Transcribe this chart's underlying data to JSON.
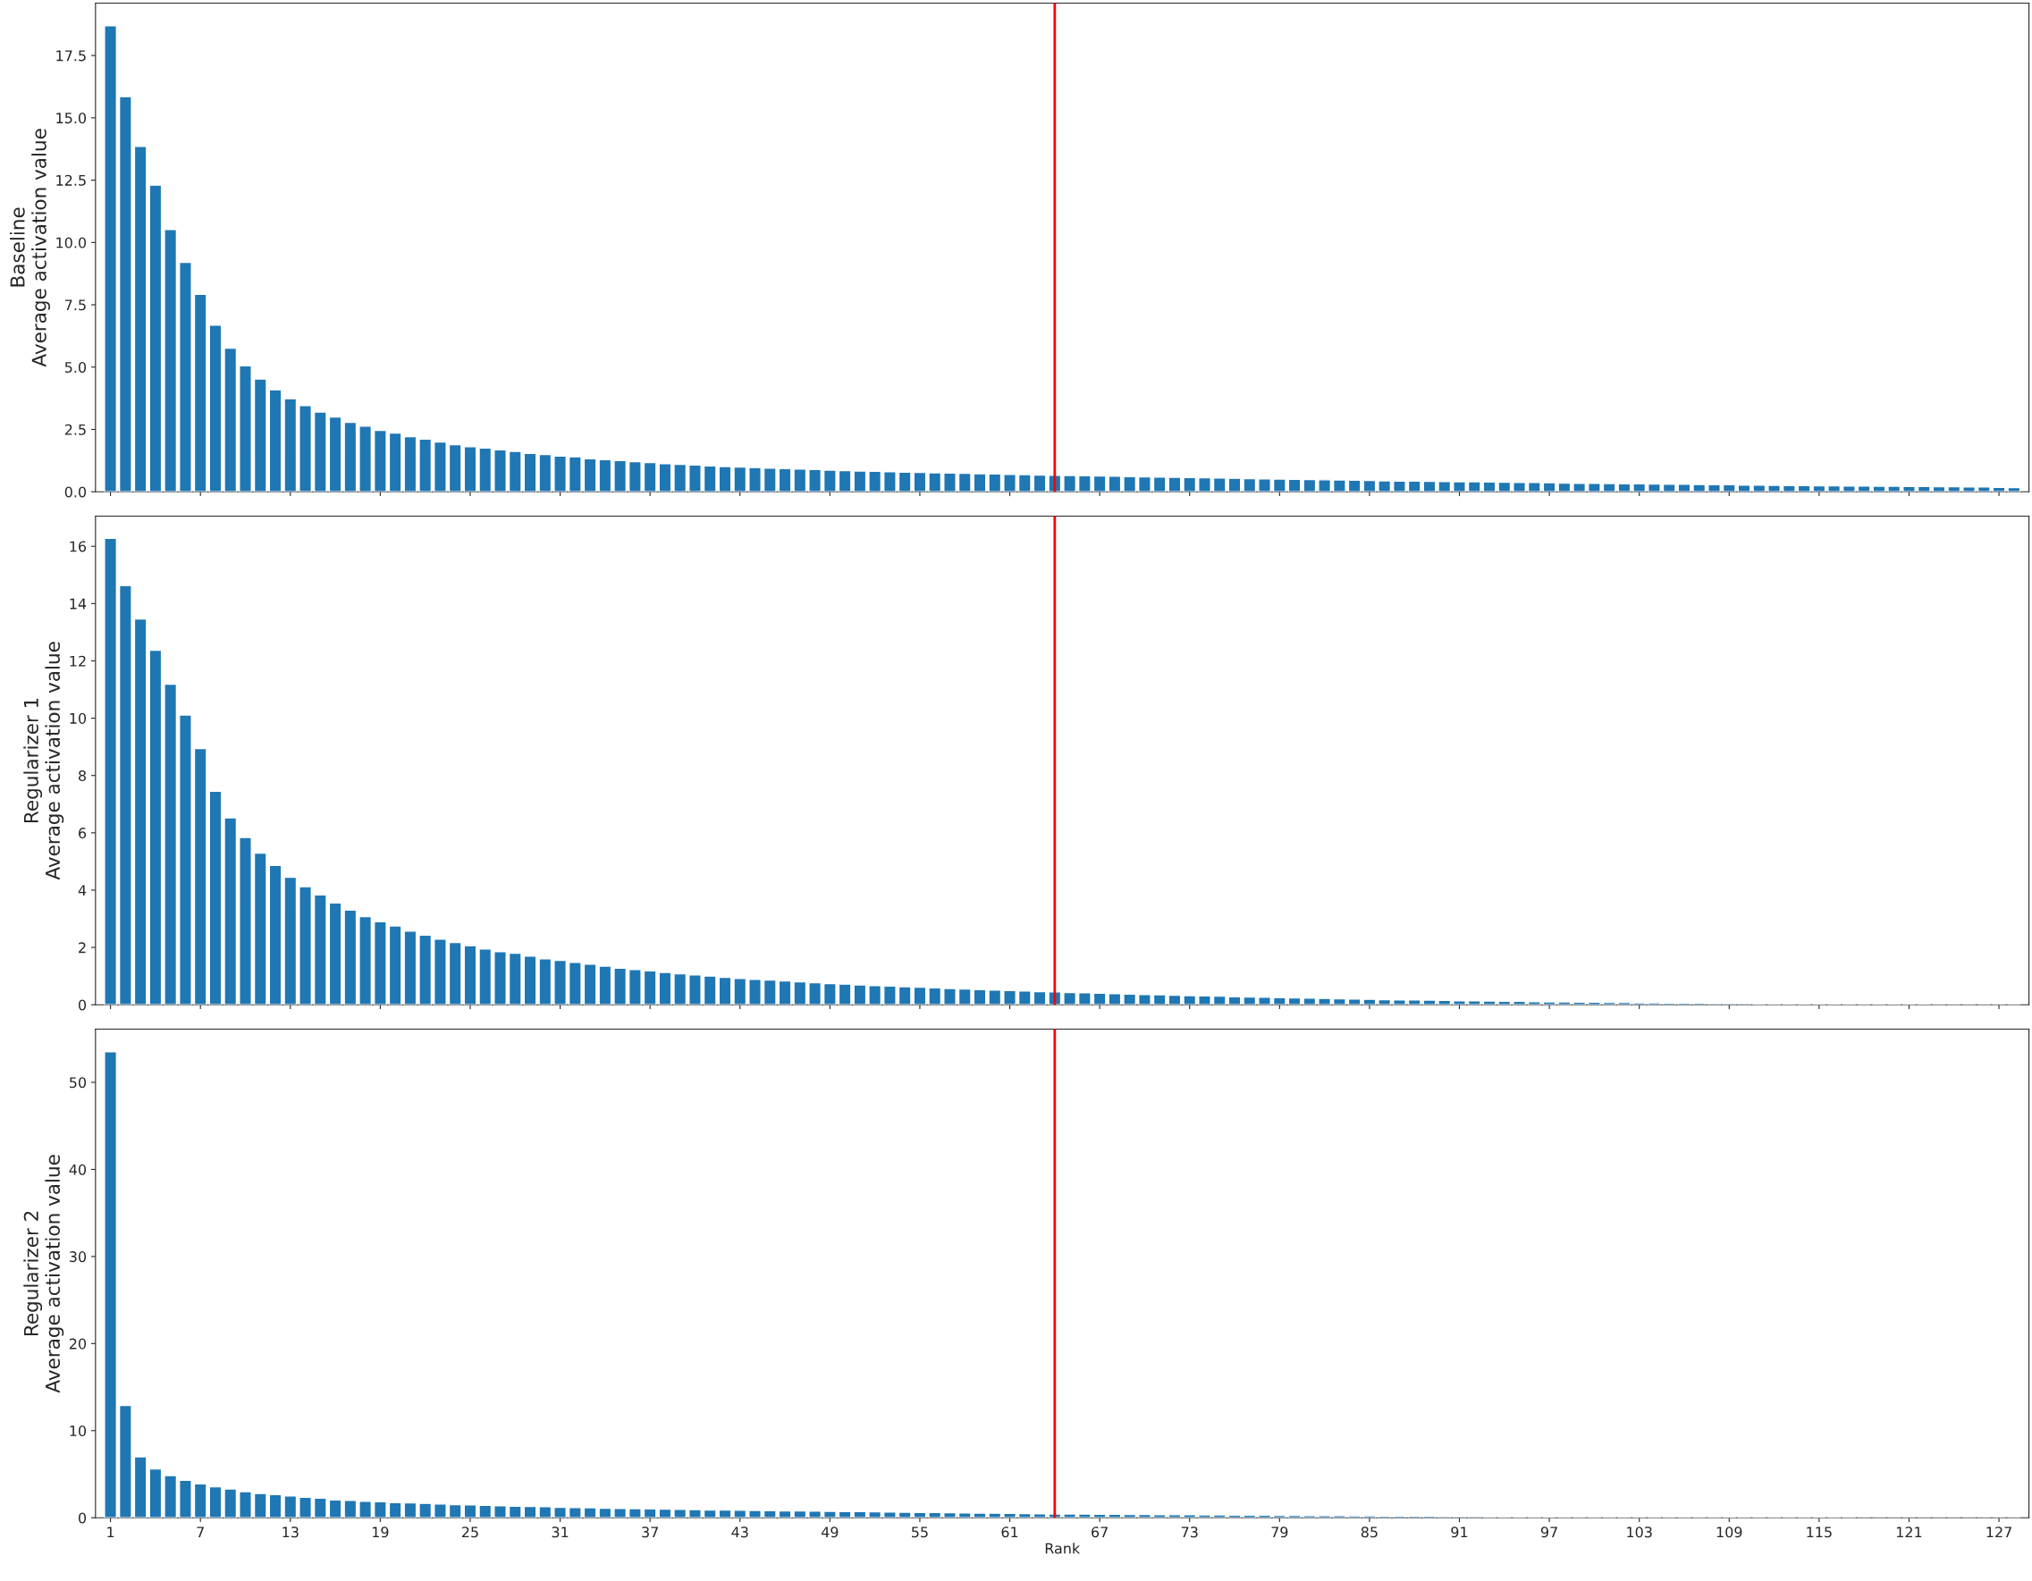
{
  "chart_data": [
    {
      "type": "bar",
      "ylabel": "Baseline\nAverage activation value",
      "x": [
        1,
        2,
        3,
        4,
        5,
        6,
        7,
        8,
        9,
        10,
        11,
        12,
        13,
        14,
        15,
        16,
        17,
        18,
        19,
        20,
        21,
        22,
        23,
        24,
        25,
        26,
        27,
        28,
        29,
        30,
        31,
        32,
        33,
        34,
        35,
        36,
        37,
        38,
        39,
        40,
        41,
        42,
        43,
        44,
        45,
        46,
        47,
        48,
        49,
        50,
        51,
        52,
        53,
        54,
        55,
        56,
        57,
        58,
        59,
        60,
        61,
        62,
        63,
        64,
        65,
        66,
        67,
        68,
        69,
        70,
        71,
        72,
        73,
        74,
        75,
        76,
        77,
        78,
        79,
        80,
        81,
        82,
        83,
        84,
        85,
        86,
        87,
        88,
        89,
        90,
        91,
        92,
        93,
        94,
        95,
        96,
        97,
        98,
        99,
        100,
        101,
        102,
        103,
        104,
        105,
        106,
        107,
        108,
        109,
        110,
        111,
        112,
        113,
        114,
        115,
        116,
        117,
        118,
        119,
        120,
        121,
        122,
        123,
        124,
        125,
        126,
        127,
        128
      ],
      "series": [
        {
          "color": "#1f77b4",
          "values": [
            18.69,
            15.85,
            13.85,
            12.3,
            10.52,
            9.2,
            7.92,
            6.68,
            5.76,
            5.05,
            4.52,
            4.09,
            3.73,
            3.46,
            3.2,
            3.0,
            2.78,
            2.63,
            2.46,
            2.35,
            2.21,
            2.11,
            2.0,
            1.89,
            1.81,
            1.75,
            1.68,
            1.62,
            1.54,
            1.49,
            1.43,
            1.4,
            1.32,
            1.29,
            1.25,
            1.21,
            1.17,
            1.13,
            1.1,
            1.07,
            1.04,
            1.01,
            0.99,
            0.97,
            0.95,
            0.93,
            0.91,
            0.89,
            0.87,
            0.85,
            0.83,
            0.82,
            0.8,
            0.79,
            0.78,
            0.76,
            0.75,
            0.74,
            0.72,
            0.71,
            0.7,
            0.69,
            0.67,
            0.66,
            0.65,
            0.64,
            0.63,
            0.62,
            0.61,
            0.6,
            0.59,
            0.58,
            0.57,
            0.56,
            0.55,
            0.54,
            0.53,
            0.52,
            0.51,
            0.5,
            0.49,
            0.48,
            0.47,
            0.46,
            0.45,
            0.44,
            0.43,
            0.43,
            0.42,
            0.41,
            0.4,
            0.4,
            0.39,
            0.38,
            0.37,
            0.37,
            0.36,
            0.35,
            0.34,
            0.34,
            0.33,
            0.32,
            0.32,
            0.31,
            0.3,
            0.3,
            0.29,
            0.28,
            0.28,
            0.27,
            0.27,
            0.26,
            0.25,
            0.25,
            0.24,
            0.24,
            0.23,
            0.23,
            0.22,
            0.22,
            0.21,
            0.21,
            0.2,
            0.2,
            0.19,
            0.19,
            0.18,
            0.17
          ]
        }
      ],
      "xlim": [
        0,
        129
      ],
      "xticks": [
        1,
        7,
        13,
        19,
        25,
        31,
        37,
        43,
        49,
        55,
        61,
        67,
        73,
        79,
        85,
        91,
        97,
        103,
        109,
        115,
        121,
        127
      ],
      "ylim": [
        0,
        19.6
      ],
      "yticks": [
        {
          "value": 0,
          "label": "0.0"
        },
        2.5,
        {
          "value": 5,
          "label": "5.0"
        },
        7.5,
        {
          "value": 10,
          "label": "10.0"
        },
        12.5,
        {
          "value": 15,
          "label": "15.0"
        },
        17.5
      ],
      "tick_labels": "y",
      "ref_lines": [
        {
          "axis": "x",
          "value": 64,
          "color": "#ff0000"
        }
      ]
    },
    {
      "type": "bar",
      "ylabel": "Regularizer 1\nAverage activation value",
      "x": [
        1,
        2,
        3,
        4,
        5,
        6,
        7,
        8,
        9,
        10,
        11,
        12,
        13,
        14,
        15,
        16,
        17,
        18,
        19,
        20,
        21,
        22,
        23,
        24,
        25,
        26,
        27,
        28,
        29,
        30,
        31,
        32,
        33,
        34,
        35,
        36,
        37,
        38,
        39,
        40,
        41,
        42,
        43,
        44,
        45,
        46,
        47,
        48,
        49,
        50,
        51,
        52,
        53,
        54,
        55,
        56,
        57,
        58,
        59,
        60,
        61,
        62,
        63,
        64,
        65,
        66,
        67,
        68,
        69,
        70,
        71,
        72,
        73,
        74,
        75,
        76,
        77,
        78,
        79,
        80,
        81,
        82,
        83,
        84,
        85,
        86,
        87,
        88,
        89,
        90,
        91,
        92,
        93,
        94,
        95,
        96,
        97,
        98,
        99,
        100,
        101,
        102,
        103,
        104,
        105,
        106,
        107,
        108,
        109,
        110,
        111,
        112,
        113,
        114,
        115,
        116,
        117,
        118,
        119,
        120,
        121,
        122,
        123,
        124,
        125,
        126,
        127,
        128
      ],
      "series": [
        {
          "color": "#1f77b4",
          "values": [
            16.28,
            14.63,
            13.46,
            12.37,
            11.19,
            10.11,
            8.94,
            7.45,
            6.52,
            5.84,
            5.29,
            4.86,
            4.45,
            4.12,
            3.83,
            3.55,
            3.3,
            3.08,
            2.9,
            2.75,
            2.57,
            2.43,
            2.29,
            2.17,
            2.06,
            1.95,
            1.85,
            1.8,
            1.7,
            1.6,
            1.55,
            1.48,
            1.42,
            1.35,
            1.28,
            1.23,
            1.18,
            1.13,
            1.08,
            1.04,
            1.0,
            0.96,
            0.92,
            0.89,
            0.86,
            0.83,
            0.8,
            0.77,
            0.74,
            0.72,
            0.69,
            0.67,
            0.65,
            0.63,
            0.61,
            0.59,
            0.57,
            0.55,
            0.53,
            0.51,
            0.5,
            0.48,
            0.46,
            0.45,
            0.43,
            0.42,
            0.4,
            0.39,
            0.37,
            0.36,
            0.35,
            0.33,
            0.32,
            0.31,
            0.3,
            0.28,
            0.27,
            0.26,
            0.25,
            0.24,
            0.23,
            0.22,
            0.21,
            0.2,
            0.19,
            0.18,
            0.17,
            0.17,
            0.16,
            0.15,
            0.14,
            0.14,
            0.13,
            0.12,
            0.12,
            0.11,
            0.1,
            0.1,
            0.09,
            0.09,
            0.08,
            0.08,
            0.07,
            0.07,
            0.06,
            0.06,
            0.06,
            0.05,
            0.05,
            0.05,
            0.04,
            0.04,
            0.04,
            0.03,
            0.03,
            0.03,
            0.03,
            0.02,
            0.02,
            0.02,
            0.02,
            0.02,
            0.01,
            0.01,
            0.01,
            0.01,
            0.01,
            0.01
          ]
        }
      ],
      "xlim": [
        0,
        129
      ],
      "xticks": [
        1,
        7,
        13,
        19,
        25,
        31,
        37,
        43,
        49,
        55,
        61,
        67,
        73,
        79,
        85,
        91,
        97,
        103,
        109,
        115,
        121,
        127
      ],
      "ylim": [
        0,
        17.05
      ],
      "yticks": [
        0,
        2,
        4,
        6,
        8,
        10,
        12,
        14,
        16
      ],
      "tick_labels": "y",
      "ref_lines": [
        {
          "axis": "x",
          "value": 64,
          "color": "#ff0000"
        }
      ]
    },
    {
      "type": "bar",
      "ylabel": "Regularizer 2\nAverage activation value",
      "xlabel": "Rank",
      "x": [
        1,
        2,
        3,
        4,
        5,
        6,
        7,
        8,
        9,
        10,
        11,
        12,
        13,
        14,
        15,
        16,
        17,
        18,
        19,
        20,
        21,
        22,
        23,
        24,
        25,
        26,
        27,
        28,
        29,
        30,
        31,
        32,
        33,
        34,
        35,
        36,
        37,
        38,
        39,
        40,
        41,
        42,
        43,
        44,
        45,
        46,
        47,
        48,
        49,
        50,
        51,
        52,
        53,
        54,
        55,
        56,
        57,
        58,
        59,
        60,
        61,
        62,
        63,
        64,
        65,
        66,
        67,
        68,
        69,
        70,
        71,
        72,
        73,
        74,
        75,
        76,
        77,
        78,
        79,
        80,
        81,
        82,
        83,
        84,
        85,
        86,
        87,
        88,
        89,
        90,
        91,
        92,
        93,
        94,
        95,
        96,
        97,
        98,
        99,
        100,
        101,
        102,
        103,
        104,
        105,
        106,
        107,
        108,
        109,
        110,
        111,
        112,
        113,
        114,
        115,
        116,
        117,
        118,
        119,
        120,
        121,
        122,
        123,
        124,
        125,
        126,
        127,
        128
      ],
      "series": [
        {
          "color": "#1f77b4",
          "values": [
            53.5,
            12.9,
            7.0,
            5.6,
            4.85,
            4.3,
            3.9,
            3.55,
            3.3,
            3.0,
            2.8,
            2.65,
            2.5,
            2.35,
            2.25,
            2.05,
            2.0,
            1.9,
            1.85,
            1.75,
            1.7,
            1.65,
            1.58,
            1.5,
            1.48,
            1.42,
            1.38,
            1.32,
            1.3,
            1.28,
            1.2,
            1.18,
            1.15,
            1.1,
            1.08,
            1.05,
            1.02,
            0.99,
            0.96,
            0.93,
            0.9,
            0.88,
            0.86,
            0.84,
            0.82,
            0.8,
            0.78,
            0.76,
            0.74,
            0.72,
            0.7,
            0.68,
            0.66,
            0.64,
            0.62,
            0.6,
            0.58,
            0.56,
            0.54,
            0.52,
            0.5,
            0.48,
            0.46,
            0.44,
            0.43,
            0.42,
            0.41,
            0.4,
            0.38,
            0.37,
            0.36,
            0.35,
            0.34,
            0.33,
            0.32,
            0.31,
            0.3,
            0.29,
            0.28,
            0.27,
            0.26,
            0.25,
            0.24,
            0.23,
            0.22,
            0.21,
            0.21,
            0.2,
            0.19,
            0.18,
            0.18,
            0.17,
            0.16,
            0.16,
            0.15,
            0.14,
            0.14,
            0.13,
            0.13,
            0.12,
            0.12,
            0.11,
            0.11,
            0.1,
            0.1,
            0.1,
            0.09,
            0.09,
            0.09,
            0.08,
            0.08,
            0.08,
            0.07,
            0.07,
            0.07,
            0.06,
            0.06,
            0.01,
            0.01,
            0.01,
            0.01,
            0.01,
            0.01,
            0.01,
            0.01,
            0.01,
            0.01,
            0.01
          ]
        }
      ],
      "xlim": [
        0,
        129
      ],
      "xticks": [
        1,
        7,
        13,
        19,
        25,
        31,
        37,
        43,
        49,
        55,
        61,
        67,
        73,
        79,
        85,
        91,
        97,
        103,
        109,
        115,
        121,
        127
      ],
      "ylim": [
        0,
        56.1
      ],
      "yticks": [
        0,
        10,
        20,
        30,
        40,
        50
      ],
      "ref_lines": [
        {
          "axis": "x",
          "value": 64,
          "color": "#ff0000"
        }
      ]
    }
  ]
}
